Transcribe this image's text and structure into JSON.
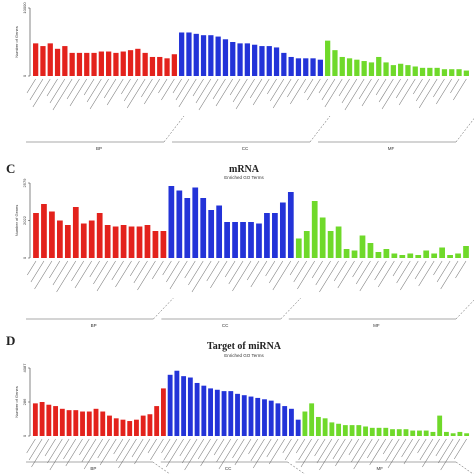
{
  "colors": {
    "bp": "#e3221c",
    "cc": "#2333d8",
    "mf": "#6fd92a",
    "axis": "#333333",
    "text": "#222222"
  },
  "panels": [
    {
      "letter": "",
      "title": "",
      "subtitle": ""
    },
    {
      "letter": "C",
      "title": "mRNA",
      "subtitle": "Enriched GO Terms"
    },
    {
      "letter": "D",
      "title": "Target of miRNA",
      "subtitle": "Enriched GO Terms"
    }
  ],
  "chart_data": [
    {
      "type": "bar",
      "title": "",
      "ylabel": "Number of Genes",
      "y_ticks": [
        "0",
        "10000"
      ],
      "group_labels": [
        "BP",
        "CC",
        "MF"
      ],
      "series": [
        {
          "name": "BP",
          "values": [
            24,
            22,
            24,
            20,
            22,
            17,
            17,
            17,
            17,
            18,
            18,
            17,
            18,
            19,
            20,
            17,
            14,
            14,
            13,
            16
          ]
        },
        {
          "name": "CC",
          "values": [
            32,
            32,
            31,
            30,
            30,
            29,
            27,
            25,
            24,
            24,
            23,
            22,
            22,
            21,
            17,
            14,
            13,
            13,
            13,
            12
          ]
        },
        {
          "name": "MF",
          "values": [
            26,
            19,
            14,
            13,
            12,
            11,
            10,
            14,
            10,
            8,
            9,
            8,
            7,
            6,
            6,
            6,
            5,
            5,
            5,
            4
          ]
        }
      ]
    },
    {
      "type": "bar",
      "title": "mRNA",
      "ylabel": "Number of Genes",
      "y_ticks": [
        "0",
        "2022",
        "2579"
      ],
      "group_labels": [
        "BP",
        "CC",
        "MF"
      ],
      "series": [
        {
          "name": "BP",
          "values": [
            30,
            36,
            31,
            25,
            22,
            34,
            23,
            25,
            30,
            22,
            21,
            22,
            21,
            21,
            22,
            18,
            18
          ]
        },
        {
          "name": "CC",
          "values": [
            48,
            45,
            40,
            47,
            40,
            32,
            35,
            24,
            24,
            24,
            24,
            23,
            30,
            30,
            37,
            44
          ]
        },
        {
          "name": "MF",
          "values": [
            13,
            18,
            38,
            27,
            18,
            21,
            6,
            5,
            15,
            10,
            4,
            6,
            3,
            2,
            3,
            2,
            5,
            3,
            7,
            2,
            3,
            8
          ]
        }
      ]
    },
    {
      "type": "bar",
      "title": "Target of miRNA",
      "ylabel": "Number of Genes",
      "y_ticks": [
        "0",
        "286",
        "4087"
      ],
      "group_labels": [
        "BP",
        "CC",
        "MF"
      ],
      "series": [
        {
          "name": "BP",
          "values": [
            24,
            25,
            23,
            22,
            20,
            19,
            19,
            18,
            18,
            20,
            18,
            15,
            13,
            12,
            11,
            12,
            15,
            16,
            22,
            35
          ]
        },
        {
          "name": "CC",
          "values": [
            45,
            48,
            44,
            43,
            39,
            37,
            35,
            34,
            33,
            33,
            31,
            30,
            29,
            28,
            27,
            26,
            24,
            22,
            20,
            12
          ]
        },
        {
          "name": "MF",
          "values": [
            18,
            24,
            14,
            13,
            10,
            9,
            8,
            8,
            8,
            7,
            6,
            6,
            6,
            5,
            5,
            5,
            4,
            4,
            4,
            3,
            15,
            3,
            2,
            3,
            2
          ]
        }
      ]
    }
  ]
}
